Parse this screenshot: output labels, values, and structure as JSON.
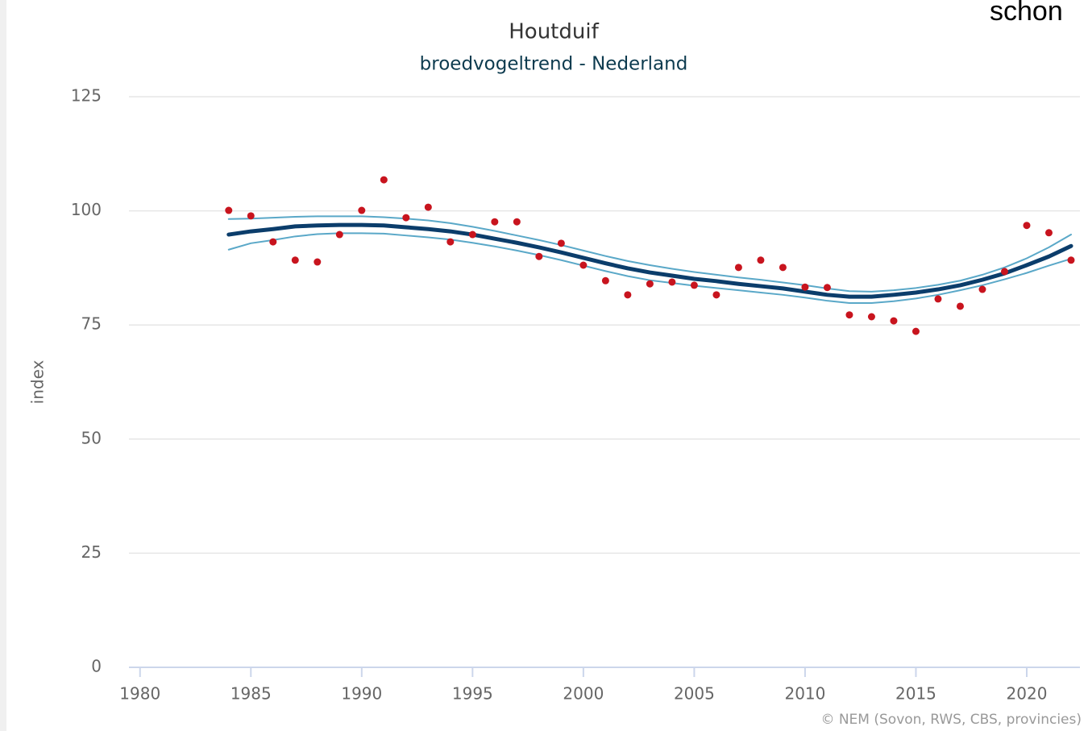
{
  "chart_data": {
    "type": "line",
    "title": "Houtduif",
    "subtitle": "broedvogeltrend - Nederland",
    "corner_text": "schon",
    "ylabel": "index",
    "credit": "© NEM (Sovon, RWS, CBS, provincies)",
    "x": [
      1984,
      1985,
      1986,
      1987,
      1988,
      1989,
      1990,
      1991,
      1992,
      1993,
      1994,
      1995,
      1996,
      1997,
      1998,
      1999,
      2000,
      2001,
      2002,
      2003,
      2004,
      2005,
      2006,
      2007,
      2008,
      2009,
      2010,
      2011,
      2012,
      2013,
      2014,
      2015,
      2016,
      2017,
      2018,
      2019,
      2020,
      2021,
      2022
    ],
    "xlim": [
      1979.5,
      2022.4
    ],
    "xticks": [
      1980,
      1985,
      1990,
      1995,
      2000,
      2005,
      2010,
      2015,
      2020
    ],
    "ylim": [
      0,
      125
    ],
    "yticks": [
      0,
      25,
      50,
      75,
      100,
      125
    ],
    "grid": true,
    "series": [
      {
        "style": "line",
        "width": 2,
        "color": "#5aa8c8",
        "values": [
          98.2,
          98.3,
          98.5,
          98.7,
          98.8,
          98.8,
          98.8,
          98.6,
          98.3,
          97.9,
          97.3,
          96.5,
          95.6,
          94.6,
          93.6,
          92.5,
          91.3,
          90.1,
          89.0,
          88.1,
          87.3,
          86.6,
          86.0,
          85.4,
          84.9,
          84.3,
          83.7,
          83.0,
          82.4,
          82.3,
          82.6,
          83.1,
          83.8,
          84.7,
          86.0,
          87.6,
          89.6,
          92.0,
          94.8
        ]
      },
      {
        "style": "line",
        "width": 2,
        "color": "#5aa8c8",
        "values": [
          91.5,
          92.9,
          93.6,
          94.4,
          94.9,
          95.1,
          95.1,
          95.0,
          94.6,
          94.2,
          93.7,
          93.0,
          92.2,
          91.3,
          90.3,
          89.2,
          88.0,
          86.8,
          85.7,
          84.8,
          84.2,
          83.6,
          83.1,
          82.6,
          82.1,
          81.6,
          81.0,
          80.3,
          79.8,
          79.8,
          80.2,
          80.8,
          81.6,
          82.6,
          83.7,
          85.0,
          86.4,
          88.0,
          89.5
        ]
      },
      {
        "style": "line",
        "width": 5,
        "color": "#0b3d6b",
        "values": [
          94.8,
          95.5,
          96.0,
          96.6,
          96.8,
          96.9,
          96.9,
          96.8,
          96.4,
          96.0,
          95.5,
          94.8,
          93.9,
          93.0,
          92.0,
          90.9,
          89.7,
          88.5,
          87.4,
          86.5,
          85.8,
          85.1,
          84.6,
          84.0,
          83.5,
          83.0,
          82.3,
          81.6,
          81.2,
          81.2,
          81.6,
          82.1,
          82.8,
          83.7,
          84.9,
          86.3,
          88.1,
          90.0,
          92.3
        ]
      },
      {
        "style": "markers",
        "width": 4.5,
        "color": "#c8141e",
        "values": [
          100.1,
          98.9,
          93.2,
          89.2,
          88.8,
          94.8,
          100.1,
          106.8,
          98.5,
          100.8,
          93.2,
          94.8,
          97.6,
          97.6,
          90.0,
          92.9,
          88.1,
          84.7,
          81.6,
          84.0,
          84.4,
          83.7,
          81.6,
          87.6,
          89.2,
          87.6,
          83.3,
          83.2,
          77.2,
          76.8,
          75.9,
          73.6,
          80.7,
          79.1,
          82.8,
          86.7,
          96.8,
          95.2,
          89.2
        ]
      }
    ]
  }
}
